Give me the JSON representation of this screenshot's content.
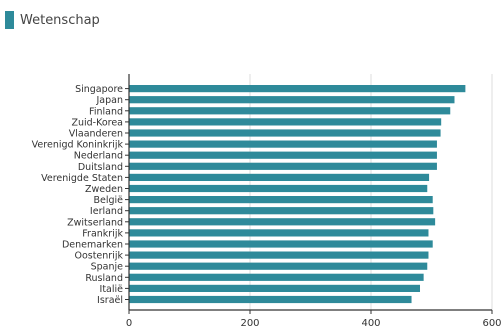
{
  "chart_data": {
    "type": "bar",
    "orientation": "horizontal",
    "title": "Wetenschap",
    "xlabel": "",
    "ylabel": "",
    "xlim": [
      0,
      600
    ],
    "xticks": [
      "0",
      "200",
      "400",
      "600"
    ],
    "grid": true,
    "color": "#2e8a9a",
    "categories": [
      "Singapore",
      "Japan",
      "Finland",
      "Zuid-Korea",
      "Vlaanderen",
      "Verenigd Koninkrijk",
      "Nederland",
      "Duitsland",
      "Verenigde Staten",
      "Zweden",
      "België",
      "Ierland",
      "Zwitserland",
      "Frankrijk",
      "Denemarken",
      "Oostenrijk",
      "Spanje",
      "Rusland",
      "Italië",
      "Israël"
    ],
    "values": [
      556,
      538,
      531,
      516,
      515,
      509,
      509,
      509,
      496,
      493,
      502,
      503,
      506,
      495,
      502,
      495,
      493,
      487,
      481,
      467
    ]
  }
}
